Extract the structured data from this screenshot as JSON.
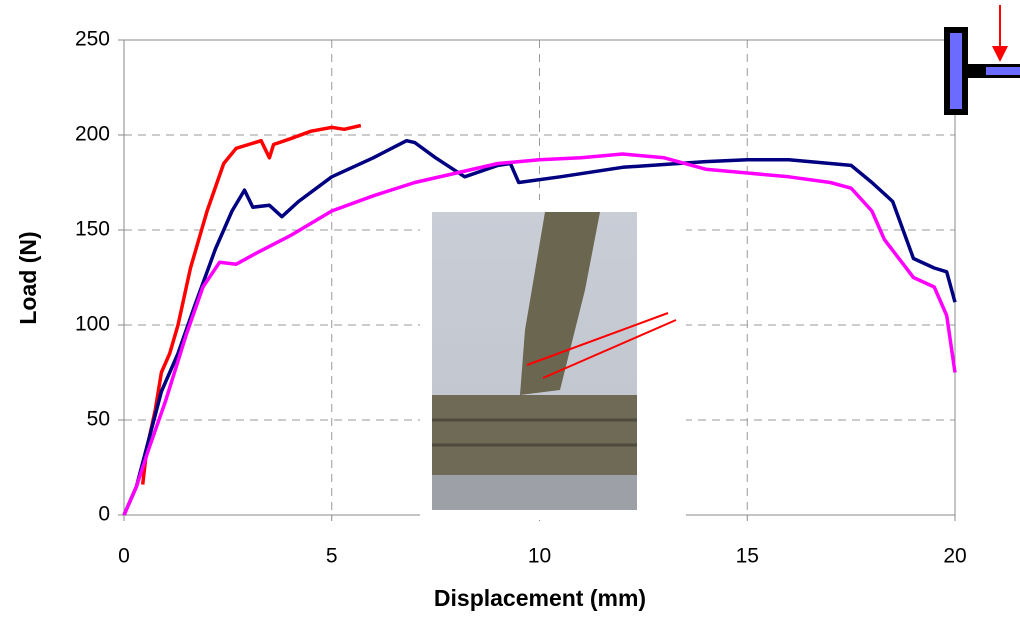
{
  "chart_data": {
    "type": "line",
    "xlabel": "Displacement (mm)",
    "ylabel": "Load (N)",
    "xlim": [
      0,
      20
    ],
    "xticks": [
      0,
      5,
      10,
      15,
      20
    ],
    "ylim": [
      0,
      250
    ],
    "yticks": [
      0,
      50,
      100,
      150,
      200,
      250
    ],
    "grid": true,
    "series": [
      {
        "color": "#ff0000",
        "x": [
          0.45,
          0.55,
          0.75,
          0.9,
          1.1,
          1.3,
          1.6,
          2.0,
          2.4,
          2.7,
          3.0,
          3.3,
          3.5,
          3.6,
          4.0,
          4.5,
          5.0,
          5.3,
          5.7
        ],
        "values": [
          16,
          35,
          55,
          75,
          85,
          100,
          130,
          160,
          185,
          193,
          195,
          197,
          188,
          195,
          198,
          202,
          204,
          203,
          205
        ]
      },
      {
        "color": "#000080",
        "x": [
          0,
          0.3,
          0.6,
          0.9,
          1.3,
          1.7,
          2.2,
          2.6,
          2.9,
          3.1,
          3.5,
          3.8,
          4.2,
          5,
          6,
          6.8,
          7.0,
          7.5,
          8.2,
          9.0,
          9.3,
          9.5,
          10.5,
          12,
          14,
          15,
          16,
          17,
          17.5,
          18,
          18.5,
          19,
          19.5,
          19.8,
          20
        ],
        "values": [
          0,
          15,
          40,
          65,
          85,
          110,
          140,
          160,
          171,
          162,
          163,
          157,
          165,
          178,
          188,
          197,
          196,
          188,
          178,
          184,
          185,
          175,
          178,
          183,
          186,
          187,
          187,
          185,
          184,
          175,
          165,
          135,
          130,
          128,
          112
        ]
      },
      {
        "color": "#ff00ff",
        "x": [
          0,
          0.3,
          0.6,
          1.0,
          1.5,
          1.9,
          2.3,
          2.7,
          3.2,
          4,
          5,
          6,
          7,
          8,
          9,
          10,
          11,
          12,
          13,
          14,
          15,
          16,
          17,
          17.5,
          18,
          18.3,
          19,
          19.5,
          19.8,
          20
        ],
        "values": [
          0,
          15,
          35,
          60,
          95,
          120,
          133,
          132,
          138,
          147,
          160,
          168,
          175,
          180,
          185,
          187,
          188,
          190,
          188,
          182,
          180,
          178,
          175,
          172,
          160,
          145,
          125,
          120,
          105,
          75
        ]
      }
    ]
  }
}
